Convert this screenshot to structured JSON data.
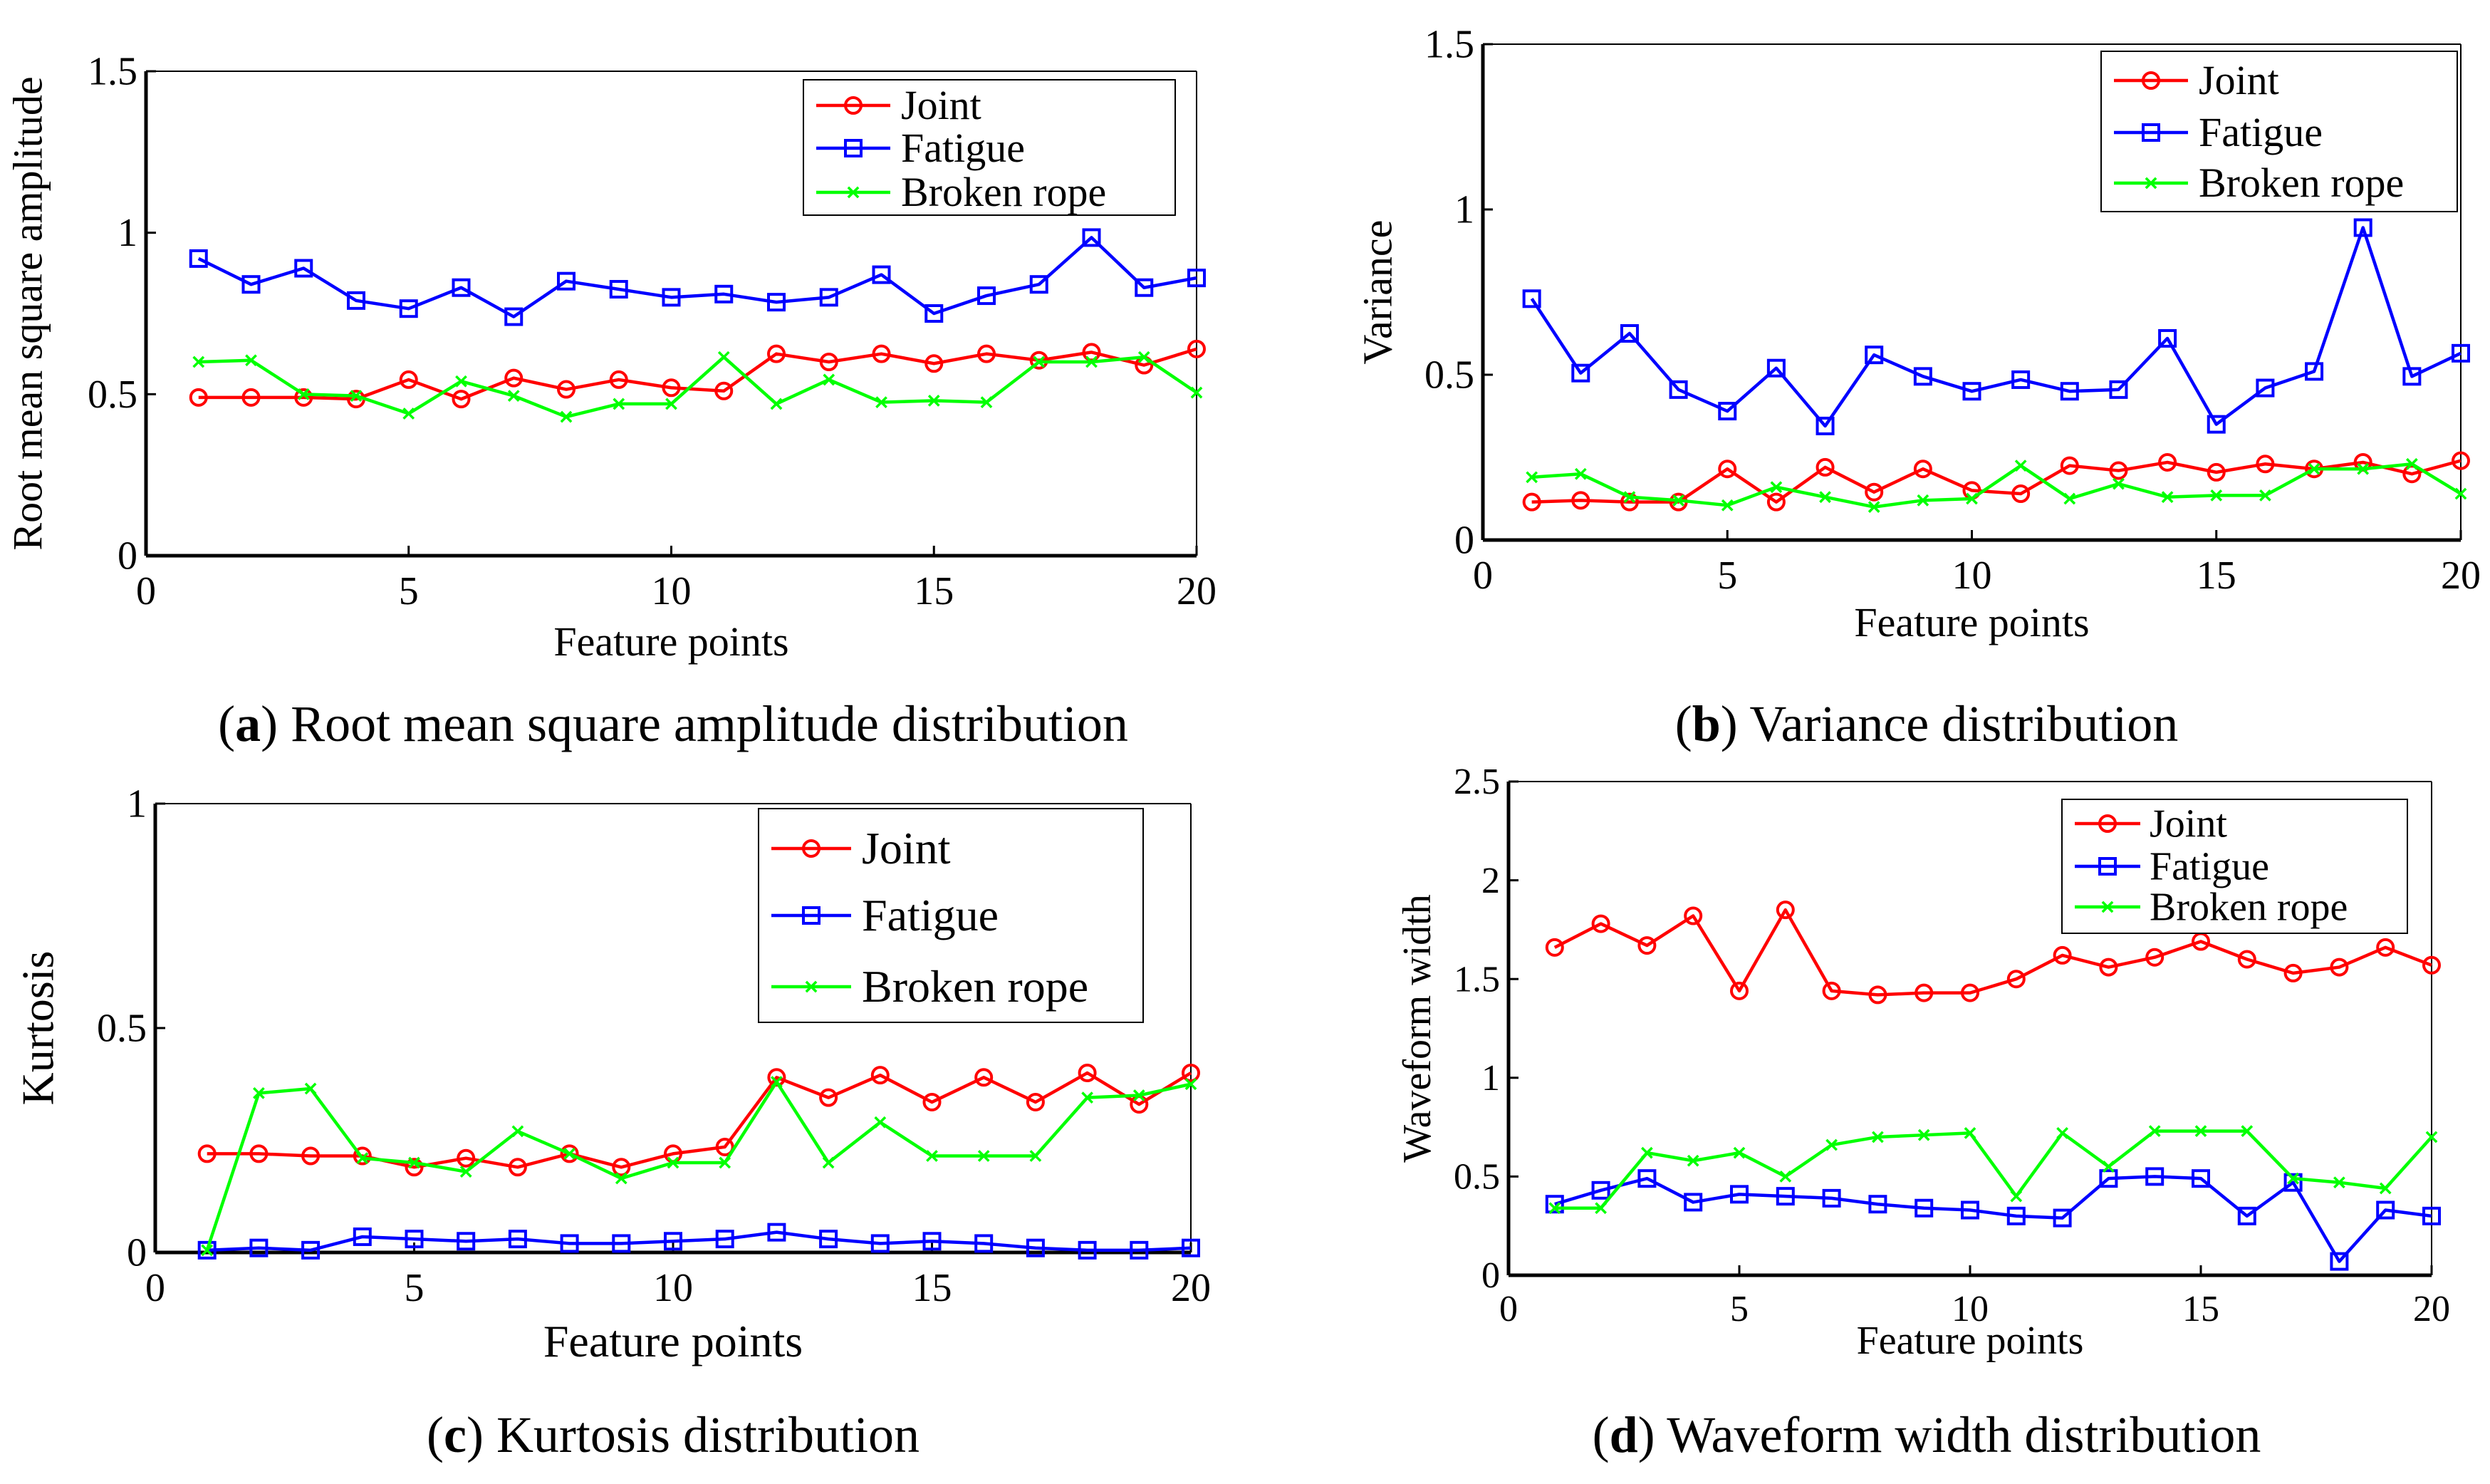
{
  "colors": {
    "joint": "#ff0000",
    "fatigue": "#0000ff",
    "broken_rope": "#00ff00"
  },
  "chart_data": [
    {
      "id": "a",
      "type": "line",
      "caption_letter": "a",
      "caption_text": " Root mean square amplitude distribution",
      "xlabel": "Feature points",
      "ylabel": "Root mean square amplitude",
      "xlim": [
        0,
        20
      ],
      "ylim": [
        0,
        1.5
      ],
      "xticks": [
        "0",
        "5",
        "10",
        "15",
        "20"
      ],
      "yticks": [
        "0",
        "0.5",
        "1",
        "1.5"
      ],
      "legend_position": "top-right",
      "x": [
        1,
        2,
        3,
        4,
        5,
        6,
        7,
        8,
        9,
        10,
        11,
        12,
        13,
        14,
        15,
        16,
        17,
        18,
        19,
        20
      ],
      "series": [
        {
          "name": "Joint",
          "marker": "circle",
          "values": [
            0.49,
            0.49,
            0.49,
            0.485,
            0.545,
            0.485,
            0.55,
            0.515,
            0.545,
            0.52,
            0.51,
            0.625,
            0.6,
            0.625,
            0.595,
            0.625,
            0.605,
            0.63,
            0.59,
            0.64
          ]
        },
        {
          "name": "Fatigue",
          "marker": "square",
          "values": [
            0.92,
            0.84,
            0.89,
            0.79,
            0.765,
            0.83,
            0.74,
            0.85,
            0.825,
            0.8,
            0.81,
            0.785,
            0.8,
            0.87,
            0.75,
            0.805,
            0.84,
            0.985,
            0.83,
            0.86
          ]
        },
        {
          "name": "Broken rope",
          "marker": "x",
          "values": [
            0.6,
            0.605,
            0.5,
            0.495,
            0.44,
            0.54,
            0.495,
            0.43,
            0.47,
            0.47,
            0.615,
            0.47,
            0.545,
            0.475,
            0.48,
            0.475,
            0.6,
            0.6,
            0.615,
            0.505
          ]
        }
      ]
    },
    {
      "id": "b",
      "type": "line",
      "caption_letter": "b",
      "caption_text": " Variance distribution",
      "xlabel": "Feature points",
      "ylabel": "Variance",
      "xlim": [
        0,
        20
      ],
      "ylim": [
        0,
        1.5
      ],
      "xticks": [
        "0",
        "5",
        "10",
        "15",
        "20"
      ],
      "yticks": [
        "0",
        "0.5",
        "1",
        "1.5"
      ],
      "legend_position": "top-right",
      "x": [
        1,
        2,
        3,
        4,
        5,
        6,
        7,
        8,
        9,
        10,
        11,
        12,
        13,
        14,
        15,
        16,
        17,
        18,
        19,
        20
      ],
      "series": [
        {
          "name": "Joint",
          "marker": "circle",
          "values": [
            0.115,
            0.12,
            0.115,
            0.115,
            0.215,
            0.115,
            0.22,
            0.145,
            0.215,
            0.15,
            0.14,
            0.225,
            0.21,
            0.235,
            0.205,
            0.23,
            0.215,
            0.235,
            0.2,
            0.24
          ]
        },
        {
          "name": "Fatigue",
          "marker": "square",
          "values": [
            0.73,
            0.505,
            0.625,
            0.455,
            0.39,
            0.52,
            0.345,
            0.56,
            0.495,
            0.45,
            0.485,
            0.45,
            0.455,
            0.61,
            0.35,
            0.46,
            0.51,
            0.945,
            0.495,
            0.565
          ]
        },
        {
          "name": "Broken rope",
          "marker": "x",
          "values": [
            0.19,
            0.2,
            0.13,
            0.12,
            0.105,
            0.16,
            0.13,
            0.1,
            0.12,
            0.125,
            0.225,
            0.125,
            0.17,
            0.13,
            0.135,
            0.135,
            0.215,
            0.215,
            0.23,
            0.14
          ]
        }
      ]
    },
    {
      "id": "c",
      "type": "line",
      "caption_letter": "c",
      "caption_text": " Kurtosis distribution",
      "xlabel": "Feature points",
      "ylabel": "Kurtosis",
      "xlim": [
        0,
        20
      ],
      "ylim": [
        0,
        1
      ],
      "xticks": [
        "0",
        "5",
        "10",
        "15",
        "20"
      ],
      "yticks": [
        "0",
        "0.5",
        "1"
      ],
      "legend_position": "top-right",
      "x": [
        1,
        2,
        3,
        4,
        5,
        6,
        7,
        8,
        9,
        10,
        11,
        12,
        13,
        14,
        15,
        16,
        17,
        18,
        19,
        20
      ],
      "series": [
        {
          "name": "Joint",
          "marker": "circle",
          "values": [
            0.22,
            0.22,
            0.215,
            0.215,
            0.19,
            0.21,
            0.19,
            0.22,
            0.19,
            0.22,
            0.235,
            0.39,
            0.345,
            0.395,
            0.335,
            0.39,
            0.335,
            0.4,
            0.33,
            0.4
          ]
        },
        {
          "name": "Fatigue",
          "marker": "square",
          "values": [
            0.005,
            0.01,
            0.005,
            0.035,
            0.03,
            0.025,
            0.03,
            0.02,
            0.02,
            0.025,
            0.03,
            0.045,
            0.03,
            0.02,
            0.025,
            0.02,
            0.01,
            0.005,
            0.005,
            0.01
          ]
        },
        {
          "name": "Broken rope",
          "marker": "x",
          "values": [
            0.005,
            0.355,
            0.365,
            0.21,
            0.2,
            0.18,
            0.27,
            0.22,
            0.165,
            0.2,
            0.2,
            0.38,
            0.2,
            0.29,
            0.215,
            0.215,
            0.215,
            0.345,
            0.35,
            0.375
          ]
        }
      ]
    },
    {
      "id": "d",
      "type": "line",
      "caption_letter": "d",
      "caption_text": " Waveform width distribution",
      "xlabel": "Feature points",
      "ylabel": "Waveform width",
      "xlim": [
        0,
        20
      ],
      "ylim": [
        0,
        2.5
      ],
      "xticks": [
        "0",
        "5",
        "10",
        "15",
        "20"
      ],
      "yticks": [
        "0",
        "0.5",
        "1",
        "1.5",
        "2",
        "2.5"
      ],
      "legend_position": "top-right",
      "x": [
        1,
        2,
        3,
        4,
        5,
        6,
        7,
        8,
        9,
        10,
        11,
        12,
        13,
        14,
        15,
        16,
        17,
        18,
        19,
        20
      ],
      "series": [
        {
          "name": "Joint",
          "marker": "circle",
          "values": [
            1.66,
            1.78,
            1.67,
            1.82,
            1.44,
            1.85,
            1.44,
            1.42,
            1.43,
            1.43,
            1.5,
            1.62,
            1.56,
            1.61,
            1.69,
            1.6,
            1.53,
            1.56,
            1.66,
            1.57
          ]
        },
        {
          "name": "Fatigue",
          "marker": "square",
          "values": [
            0.36,
            0.43,
            0.49,
            0.37,
            0.41,
            0.4,
            0.39,
            0.36,
            0.34,
            0.33,
            0.3,
            0.29,
            0.49,
            0.5,
            0.49,
            0.3,
            0.47,
            0.07,
            0.33,
            0.3
          ]
        },
        {
          "name": "Broken rope",
          "marker": "x",
          "values": [
            0.34,
            0.34,
            0.62,
            0.58,
            0.62,
            0.5,
            0.66,
            0.7,
            0.71,
            0.72,
            0.4,
            0.72,
            0.55,
            0.73,
            0.73,
            0.73,
            0.49,
            0.47,
            0.44,
            0.7
          ]
        }
      ]
    }
  ]
}
